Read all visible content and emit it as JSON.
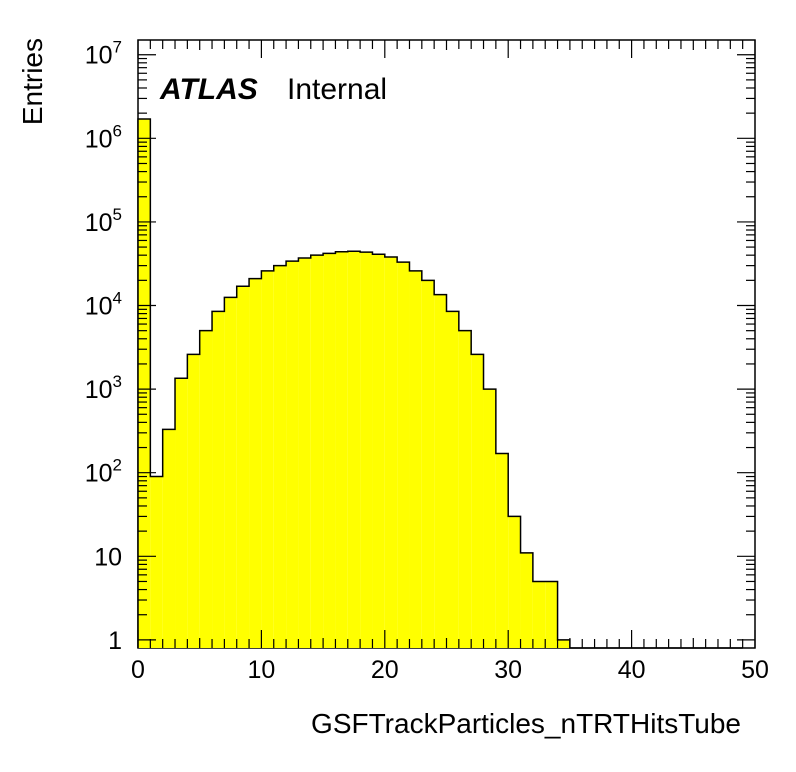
{
  "chart_data": {
    "type": "bar",
    "histogram": true,
    "xlabel": "GSFTrackParticles_nTRTHitsTube",
    "ylabel": "Entries",
    "xlim": [
      0,
      50
    ],
    "ylim": [
      0.8,
      15000000
    ],
    "y_scale": "log",
    "bin_width": 1,
    "fill_color": "#ffff00",
    "line_color": "#000000",
    "x_ticks": [
      "0",
      "10",
      "20",
      "30",
      "40",
      "50"
    ],
    "y_ticks": [
      {
        "value": 1,
        "base": "1",
        "exp": ""
      },
      {
        "value": 10,
        "base": "10",
        "exp": ""
      },
      {
        "value": 100,
        "base": "10",
        "exp": "2"
      },
      {
        "value": 1000,
        "base": "10",
        "exp": "3"
      },
      {
        "value": 10000,
        "base": "10",
        "exp": "4"
      },
      {
        "value": 100000,
        "base": "10",
        "exp": "5"
      },
      {
        "value": 1000000,
        "base": "10",
        "exp": "6"
      },
      {
        "value": 10000000,
        "base": "10",
        "exp": "7"
      }
    ],
    "values": [
      1700000,
      90,
      330,
      1350,
      2600,
      5000,
      8500,
      12500,
      17000,
      21000,
      26000,
      30000,
      34000,
      37000,
      40000,
      42000,
      44000,
      44500,
      43500,
      41000,
      38000,
      33000,
      26000,
      20000,
      13500,
      8500,
      5000,
      2600,
      1000,
      170,
      30,
      11,
      5,
      5,
      1,
      0,
      0,
      0,
      0,
      0,
      0,
      0,
      0,
      0,
      0,
      0,
      0,
      0,
      0,
      0
    ]
  },
  "labels": {
    "atlas": "ATLAS",
    "internal": "Internal"
  }
}
